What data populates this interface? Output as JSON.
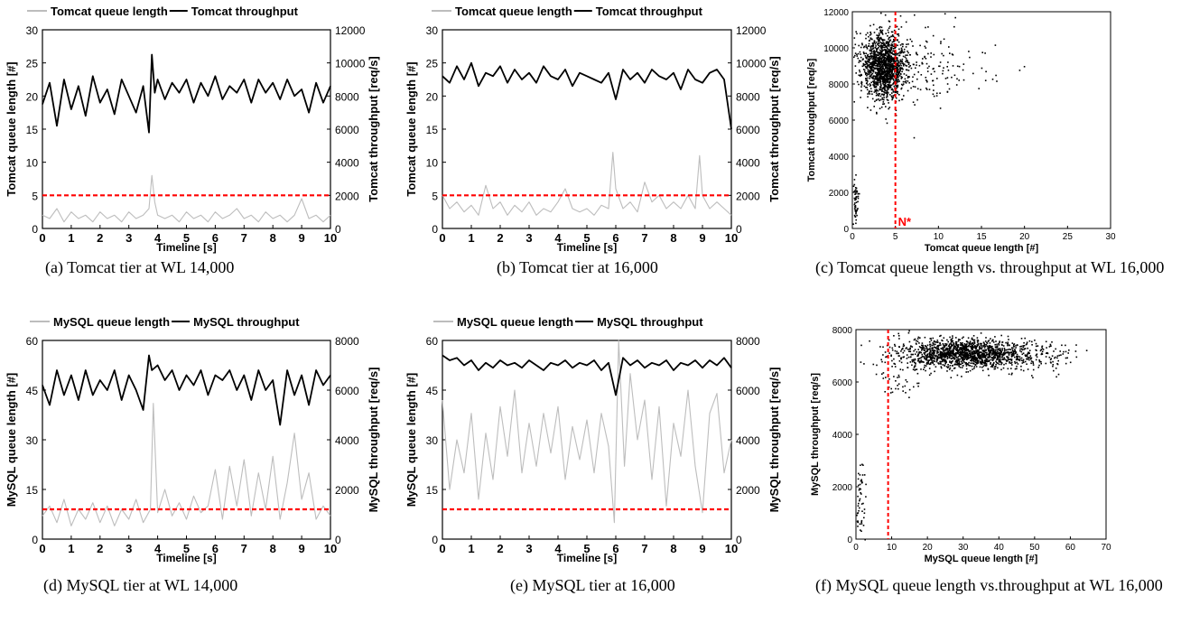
{
  "figure": {
    "panels": [
      {
        "id": "a",
        "caption": "(a) Tomcat tier at WL 14,000"
      },
      {
        "id": "b",
        "caption": "(b) Tomcat tier at 16,000"
      },
      {
        "id": "c",
        "caption": "(c) Tomcat queue length vs. throughput at WL 16,000"
      },
      {
        "id": "d",
        "caption": "(d) MySQL tier at WL 14,000"
      },
      {
        "id": "e",
        "caption": "(e) MySQL tier at 16,000"
      },
      {
        "id": "f",
        "caption": "(f) MySQL queue length vs.throughput at WL 16,000"
      }
    ]
  },
  "colors": {
    "queue": "#bdbdbd",
    "throughput": "#000000",
    "threshold": "#ff0000"
  },
  "chart_data": [
    {
      "id": "a",
      "type": "line",
      "xlabel": "Timeline [s]",
      "ylabel": "Tomcat queue length [#]",
      "y2label": "Tomcat throughput [req/s]",
      "xlim": [
        0,
        10
      ],
      "ylim": [
        0,
        30
      ],
      "y2lim": [
        0,
        12000
      ],
      "xticks": [
        "0",
        "1",
        "2",
        "3",
        "4",
        "5",
        "6",
        "7",
        "8",
        "9",
        "10"
      ],
      "yticks": [
        "0",
        "5",
        "10",
        "15",
        "20",
        "25",
        "30"
      ],
      "y2ticks": [
        "0",
        "2000",
        "4000",
        "6000",
        "8000",
        "10000",
        "12000"
      ],
      "legend": [
        "Tomcat queue length",
        "Tomcat throughput"
      ],
      "legend_position": "top",
      "threshold_queue": 5,
      "series": [
        {
          "name": "Tomcat queue length",
          "axis": "left",
          "x": [
            0,
            0.25,
            0.5,
            0.75,
            1,
            1.25,
            1.5,
            1.75,
            2,
            2.25,
            2.5,
            2.75,
            3,
            3.25,
            3.5,
            3.7,
            3.8,
            3.9,
            4,
            4.25,
            4.5,
            4.75,
            5,
            5.25,
            5.5,
            5.75,
            6,
            6.25,
            6.5,
            6.75,
            7,
            7.25,
            7.5,
            7.75,
            8,
            8.25,
            8.5,
            8.75,
            9,
            9.25,
            9.5,
            9.75,
            10
          ],
          "y": [
            2,
            1.5,
            3,
            1,
            2.5,
            1.5,
            2,
            1,
            2.5,
            1.5,
            2,
            1,
            2.5,
            1.5,
            2,
            3,
            8,
            4,
            2,
            1.5,
            2,
            1,
            2.5,
            1.5,
            2,
            1,
            2.5,
            1.5,
            2,
            3,
            1.5,
            2,
            1,
            2.5,
            1.5,
            2,
            1,
            2,
            4.5,
            1.5,
            2,
            1,
            2
          ]
        },
        {
          "name": "Tomcat throughput",
          "axis": "right",
          "x": [
            0,
            0.25,
            0.5,
            0.75,
            1,
            1.25,
            1.5,
            1.75,
            2,
            2.25,
            2.5,
            2.75,
            3,
            3.25,
            3.5,
            3.7,
            3.8,
            3.9,
            4,
            4.25,
            4.5,
            4.75,
            5,
            5.25,
            5.5,
            5.75,
            6,
            6.25,
            6.5,
            6.75,
            7,
            7.25,
            7.5,
            7.75,
            8,
            8.25,
            8.5,
            8.75,
            9,
            9.25,
            9.5,
            9.75,
            10
          ],
          "y": [
            7500,
            8800,
            6200,
            9000,
            7200,
            8600,
            6800,
            9200,
            7600,
            8400,
            6900,
            9000,
            8000,
            7000,
            8600,
            5800,
            10500,
            8200,
            9000,
            7800,
            8800,
            8200,
            9000,
            7600,
            8800,
            8000,
            9200,
            7800,
            8600,
            8200,
            9000,
            7600,
            9000,
            8200,
            8800,
            7800,
            9000,
            8000,
            8400,
            7000,
            8800,
            7600,
            8600
          ]
        }
      ]
    },
    {
      "id": "b",
      "type": "line",
      "xlabel": "Timeline [s]",
      "ylabel": "Tomcat queue length [#]",
      "y2label": "Tomcat throughput [req/s]",
      "xlim": [
        0,
        10
      ],
      "ylim": [
        0,
        30
      ],
      "y2lim": [
        0,
        12000
      ],
      "xticks": [
        "0",
        "1",
        "2",
        "3",
        "4",
        "5",
        "6",
        "7",
        "8",
        "9",
        "10"
      ],
      "yticks": [
        "0",
        "5",
        "10",
        "15",
        "20",
        "25",
        "30"
      ],
      "y2ticks": [
        "0",
        "2000",
        "4000",
        "6000",
        "8000",
        "10000",
        "12000"
      ],
      "legend": [
        "Tomcat queue length",
        "Tomcat throughput"
      ],
      "legend_position": "top",
      "threshold_queue": 5,
      "series": [
        {
          "name": "Tomcat queue length",
          "axis": "left",
          "x": [
            0,
            0.25,
            0.5,
            0.75,
            1,
            1.25,
            1.5,
            1.75,
            2,
            2.25,
            2.5,
            2.75,
            3,
            3.25,
            3.5,
            3.75,
            4,
            4.25,
            4.5,
            4.75,
            5,
            5.25,
            5.5,
            5.75,
            5.9,
            6,
            6.25,
            6.5,
            6.75,
            7,
            7.25,
            7.5,
            7.75,
            8,
            8.25,
            8.5,
            8.75,
            8.9,
            9,
            9.25,
            9.5,
            9.75,
            10
          ],
          "y": [
            5,
            3,
            4,
            2.5,
            3.5,
            2,
            6.5,
            3,
            4,
            2,
            3.5,
            2.5,
            4,
            2,
            3,
            2.5,
            4,
            6,
            3,
            2.5,
            3,
            2,
            3.5,
            3,
            11.5,
            6,
            3,
            4,
            2.5,
            7,
            4,
            5,
            3,
            4,
            3,
            5,
            3,
            11,
            5,
            3,
            4,
            3,
            2
          ]
        },
        {
          "name": "Tomcat throughput",
          "axis": "right",
          "x": [
            0,
            0.25,
            0.5,
            0.75,
            1,
            1.25,
            1.5,
            1.75,
            2,
            2.25,
            2.5,
            2.75,
            3,
            3.25,
            3.5,
            3.75,
            4,
            4.25,
            4.5,
            4.75,
            5,
            5.25,
            5.5,
            5.75,
            6,
            6.25,
            6.5,
            6.75,
            7,
            7.25,
            7.5,
            7.75,
            8,
            8.25,
            8.5,
            8.75,
            9,
            9.25,
            9.5,
            9.75,
            10
          ],
          "y": [
            9200,
            8800,
            9800,
            9000,
            10000,
            8600,
            9400,
            9200,
            9800,
            8800,
            9600,
            9000,
            9400,
            8800,
            9800,
            9200,
            9000,
            9600,
            8600,
            9400,
            9200,
            9000,
            8800,
            9400,
            7800,
            9600,
            9000,
            9400,
            8800,
            9600,
            9200,
            9000,
            9400,
            8400,
            9600,
            9000,
            8800,
            9400,
            9600,
            9000,
            6000
          ]
        }
      ]
    },
    {
      "id": "c",
      "type": "scatter",
      "xlabel": "Tomcat queue length [#]",
      "ylabel": "Tomcat throughput [req/s]",
      "xlim": [
        0,
        30
      ],
      "ylim": [
        0,
        12000
      ],
      "xticks": [
        "0",
        "5",
        "10",
        "15",
        "20",
        "25",
        "30"
      ],
      "yticks": [
        "0",
        "2000",
        "4000",
        "6000",
        "8000",
        "10000",
        "12000"
      ],
      "threshold_x": 5,
      "threshold_label": "N*",
      "clusters": [
        {
          "center": [
            3.5,
            9000
          ],
          "spread": [
            1.2,
            900
          ],
          "count": 1400
        },
        {
          "center": [
            7,
            8800
          ],
          "spread": [
            3,
            1100
          ],
          "count": 180
        },
        {
          "center": [
            14,
            9200
          ],
          "spread": [
            3,
            900
          ],
          "count": 25
        },
        {
          "center": [
            0.3,
            1500
          ],
          "spread": [
            0.15,
            700
          ],
          "count": 60
        }
      ]
    },
    {
      "id": "d",
      "type": "line",
      "xlabel": "Timeline [s]",
      "ylabel": "MySQL queue length [#]",
      "y2label": "MySQL throughput [req/s]",
      "xlim": [
        0,
        10
      ],
      "ylim": [
        0,
        60
      ],
      "y2lim": [
        0,
        8000
      ],
      "xticks": [
        "0",
        "1",
        "2",
        "3",
        "4",
        "5",
        "6",
        "7",
        "8",
        "9",
        "10"
      ],
      "yticks": [
        "0",
        "15",
        "30",
        "45",
        "60"
      ],
      "y2ticks": [
        "0",
        "2000",
        "4000",
        "6000",
        "8000"
      ],
      "legend": [
        "MySQL queue length",
        "MySQL throughput"
      ],
      "legend_position": "top",
      "threshold_queue": 9,
      "series": [
        {
          "name": "MySQL queue length",
          "axis": "left",
          "x": [
            0,
            0.25,
            0.5,
            0.75,
            1,
            1.25,
            1.5,
            1.75,
            2,
            2.25,
            2.5,
            2.75,
            3,
            3.25,
            3.5,
            3.75,
            3.85,
            4,
            4.25,
            4.5,
            4.75,
            5,
            5.25,
            5.5,
            5.75,
            6,
            6.25,
            6.5,
            6.75,
            7,
            7.25,
            7.5,
            7.75,
            8,
            8.25,
            8.5,
            8.75,
            9,
            9.25,
            9.5,
            9.75,
            10
          ],
          "y": [
            7,
            10,
            5,
            12,
            4,
            9,
            6,
            11,
            5,
            10,
            4,
            9,
            6,
            12,
            5,
            9,
            41,
            8,
            15,
            7,
            11,
            6,
            13,
            8,
            10,
            21,
            6,
            22,
            10,
            24,
            7,
            20,
            9,
            25,
            6,
            17,
            32,
            12,
            20,
            6,
            10,
            7
          ]
        },
        {
          "name": "MySQL throughput",
          "axis": "right",
          "x": [
            0,
            0.25,
            0.5,
            0.75,
            1,
            1.25,
            1.5,
            1.75,
            2,
            2.25,
            2.5,
            2.75,
            3,
            3.25,
            3.5,
            3.7,
            3.8,
            4,
            4.25,
            4.5,
            4.75,
            5,
            5.25,
            5.5,
            5.75,
            6,
            6.25,
            6.5,
            6.75,
            7,
            7.25,
            7.5,
            7.75,
            8,
            8.25,
            8.5,
            8.75,
            9,
            9.25,
            9.5,
            9.75,
            10
          ],
          "y": [
            6200,
            5400,
            6800,
            5800,
            6600,
            5600,
            6800,
            5800,
            6400,
            6000,
            6800,
            5600,
            6600,
            6000,
            5200,
            7400,
            6800,
            7000,
            6400,
            6800,
            6000,
            6600,
            6200,
            6800,
            5800,
            6600,
            6400,
            6800,
            6000,
            6600,
            5600,
            6800,
            6000,
            6400,
            4600,
            6800,
            5800,
            6600,
            5400,
            6800,
            6200,
            6600
          ]
        }
      ]
    },
    {
      "id": "e",
      "type": "line",
      "xlabel": "Timeline [s]",
      "ylabel": "MySQL queue length [#]",
      "y2label": "MySQL throughput [req/s]",
      "xlim": [
        0,
        10
      ],
      "ylim": [
        0,
        60
      ],
      "y2lim": [
        0,
        8000
      ],
      "xticks": [
        "0",
        "1",
        "2",
        "3",
        "4",
        "5",
        "6",
        "7",
        "8",
        "9",
        "10"
      ],
      "yticks": [
        "0",
        "15",
        "30",
        "45",
        "60"
      ],
      "y2ticks": [
        "0",
        "2000",
        "4000",
        "6000",
        "8000"
      ],
      "legend": [
        "MySQL queue length",
        "MySQL throughput"
      ],
      "legend_position": "top",
      "threshold_queue": 9,
      "series": [
        {
          "name": "MySQL queue length",
          "axis": "left",
          "x": [
            0,
            0.25,
            0.5,
            0.75,
            1,
            1.25,
            1.5,
            1.75,
            2,
            2.25,
            2.5,
            2.75,
            3,
            3.25,
            3.5,
            3.75,
            4,
            4.25,
            4.5,
            4.75,
            5,
            5.25,
            5.5,
            5.75,
            5.95,
            6.1,
            6.3,
            6.5,
            6.75,
            7,
            7.25,
            7.5,
            7.75,
            8,
            8.25,
            8.5,
            8.75,
            9,
            9.25,
            9.5,
            9.75,
            10
          ],
          "y": [
            42,
            15,
            30,
            20,
            38,
            12,
            32,
            18,
            40,
            25,
            45,
            20,
            35,
            22,
            38,
            26,
            40,
            18,
            34,
            24,
            36,
            20,
            38,
            28,
            5,
            60,
            22,
            50,
            30,
            42,
            18,
            40,
            10,
            35,
            25,
            45,
            22,
            8,
            38,
            44,
            20,
            30
          ]
        },
        {
          "name": "MySQL throughput",
          "axis": "right",
          "x": [
            0,
            0.25,
            0.5,
            0.75,
            1,
            1.25,
            1.5,
            1.75,
            2,
            2.25,
            2.5,
            2.75,
            3,
            3.25,
            3.5,
            3.75,
            4,
            4.25,
            4.5,
            4.75,
            5,
            5.25,
            5.5,
            5.75,
            6,
            6.25,
            6.5,
            6.75,
            7,
            7.25,
            7.5,
            7.75,
            8,
            8.25,
            8.5,
            8.75,
            9,
            9.25,
            9.5,
            9.75,
            10
          ],
          "y": [
            7400,
            7200,
            7300,
            7000,
            7200,
            6800,
            7100,
            6900,
            7200,
            7000,
            7100,
            6900,
            7200,
            7000,
            6800,
            7100,
            7000,
            7200,
            6900,
            7100,
            7000,
            7200,
            6800,
            7100,
            5800,
            7300,
            7000,
            7200,
            6900,
            7100,
            7000,
            7200,
            6800,
            7100,
            7000,
            7200,
            6900,
            7200,
            7000,
            7300,
            6900
          ]
        }
      ]
    },
    {
      "id": "f",
      "type": "scatter",
      "xlabel": "MySQL queue length [#]",
      "ylabel": "MySQL throughput [req/s]",
      "xlim": [
        0,
        70
      ],
      "ylim": [
        0,
        8000
      ],
      "xticks": [
        "0",
        "10",
        "20",
        "30",
        "40",
        "50",
        "60",
        "70"
      ],
      "yticks": [
        "0",
        "2000",
        "4000",
        "6000",
        "8000"
      ],
      "threshold_x": 9,
      "clusters": [
        {
          "center": [
            30,
            7100
          ],
          "spread": [
            9,
            280
          ],
          "count": 1500
        },
        {
          "center": [
            50,
            7000
          ],
          "spread": [
            7,
            300
          ],
          "count": 120
        },
        {
          "center": [
            12,
            6600
          ],
          "spread": [
            4,
            600
          ],
          "count": 60
        },
        {
          "center": [
            1,
            1500
          ],
          "spread": [
            0.6,
            900
          ],
          "count": 60
        }
      ]
    }
  ]
}
